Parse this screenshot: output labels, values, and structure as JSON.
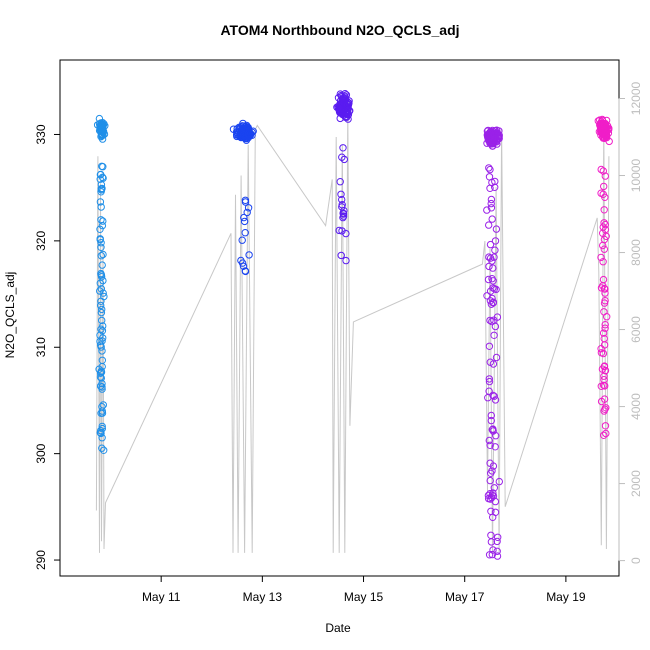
{
  "chart_data": {
    "type": "scatter",
    "title": "ATOM4 Northbound N2O_QCLS_adj",
    "xlabel": "Date",
    "ylabel": "N2O_QCLS_adj",
    "x_ticks": [
      "May 11",
      "May 13",
      "May 15",
      "May 17",
      "May 19"
    ],
    "x_tick_values": [
      11,
      13,
      15,
      17,
      19
    ],
    "xlim": [
      9.0,
      20.05
    ],
    "y_ticks": [
      290,
      300,
      310,
      320,
      330
    ],
    "ylim": [
      288.5,
      337.0
    ],
    "y2_ticks": [
      0,
      2000,
      4000,
      6000,
      8000,
      10000,
      12000
    ],
    "y2lim": [
      -400,
      13000
    ],
    "grid": false,
    "series_colors": [
      "#1f8fe8",
      "#1a44f0",
      "#5a1cf0",
      "#9a22e8",
      "#f01ec8"
    ],
    "secondary_line_color": "#c8c8c8",
    "series": [
      {
        "color": "#1f8fe8",
        "clusters": [
          {
            "x_center": 9.82,
            "x_spread": 0.2,
            "mode": "top",
            "top_center": 330.5,
            "top_spread": 1.5,
            "n_top": 45,
            "n_tail": 75,
            "tail_range": [
              300,
              328
            ]
          }
        ]
      },
      {
        "color": "#1a44f0",
        "clusters": [
          {
            "x_center": 12.65,
            "x_spread": 0.48,
            "mode": "top",
            "top_center": 330.2,
            "top_spread": 1.0,
            "n_top": 140,
            "n_tail": 14,
            "tail_range": [
              317,
              324.5
            ]
          }
        ]
      },
      {
        "color": "#5a1cf0",
        "clusters": [
          {
            "x_center": 14.6,
            "x_spread": 0.38,
            "mode": "top",
            "top_center": 332.5,
            "top_spread": 1.8,
            "n_top": 110,
            "n_tail": 18,
            "tail_range": [
              318,
              329
            ]
          }
        ]
      },
      {
        "color": "#9a22e8",
        "clusters": [
          {
            "x_center": 17.55,
            "x_spread": 0.45,
            "mode": "top",
            "top_center": 329.7,
            "top_spread": 1.2,
            "n_top": 95,
            "n_tail": 90,
            "tail_range": [
              290,
              327
            ]
          }
        ]
      },
      {
        "color": "#f01ec8",
        "clusters": [
          {
            "x_center": 19.75,
            "x_spread": 0.32,
            "mode": "top",
            "top_center": 330.5,
            "top_spread": 1.6,
            "n_top": 90,
            "n_tail": 55,
            "tail_range": [
              301,
              327
            ]
          }
        ]
      }
    ],
    "altitude_profile": {
      "name": "altitude",
      "axis": "right",
      "points": [
        [
          9.72,
          1300
        ],
        [
          9.75,
          10500
        ],
        [
          9.78,
          200
        ],
        [
          9.8,
          9800
        ],
        [
          9.82,
          500
        ],
        [
          9.85,
          8200
        ],
        [
          9.87,
          300
        ],
        [
          9.9,
          1500
        ],
        [
          12.38,
          8500
        ],
        [
          12.42,
          200
        ],
        [
          12.47,
          9500
        ],
        [
          12.52,
          200
        ],
        [
          12.58,
          10000
        ],
        [
          12.65,
          200
        ],
        [
          12.72,
          10800
        ],
        [
          12.8,
          200
        ],
        [
          12.86,
          11200
        ],
        [
          12.9,
          11300
        ],
        [
          14.25,
          8700
        ],
        [
          14.38,
          9900
        ],
        [
          14.4,
          200
        ],
        [
          14.46,
          11000
        ],
        [
          14.52,
          200
        ],
        [
          14.58,
          10800
        ],
        [
          14.63,
          200
        ],
        [
          14.69,
          11600
        ],
        [
          14.73,
          3500
        ],
        [
          14.8,
          6200
        ],
        [
          17.35,
          7700
        ],
        [
          17.4,
          8300
        ],
        [
          17.45,
          1800
        ],
        [
          17.5,
          8100
        ],
        [
          17.55,
          200
        ],
        [
          17.62,
          9700
        ],
        [
          17.68,
          200
        ],
        [
          17.73,
          11200
        ],
        [
          17.8,
          1400
        ],
        [
          19.62,
          8900
        ],
        [
          19.65,
          7500
        ],
        [
          19.7,
          400
        ],
        [
          19.75,
          11200
        ],
        [
          19.8,
          300
        ],
        [
          19.85,
          10500
        ]
      ]
    }
  }
}
